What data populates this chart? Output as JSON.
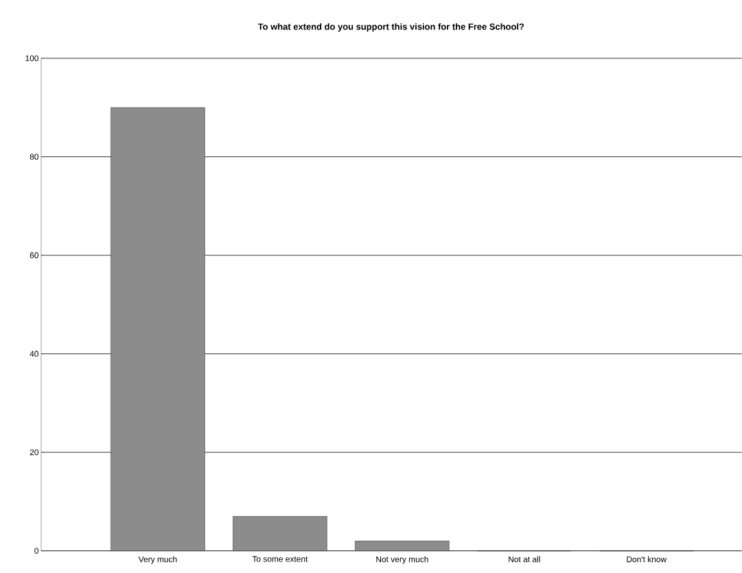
{
  "chart_data": {
    "type": "bar",
    "title": "To what extend do you support this vision for the Free School?",
    "categories": [
      "Very much",
      "To some extent",
      "Not very much",
      "Not at all",
      "Don't know"
    ],
    "values": [
      90,
      7,
      2,
      0,
      0
    ],
    "color": "#8c8c8c",
    "ylim": [
      0,
      100
    ],
    "yticks": [
      0,
      20,
      40,
      60,
      80,
      100
    ],
    "grid": "y"
  }
}
